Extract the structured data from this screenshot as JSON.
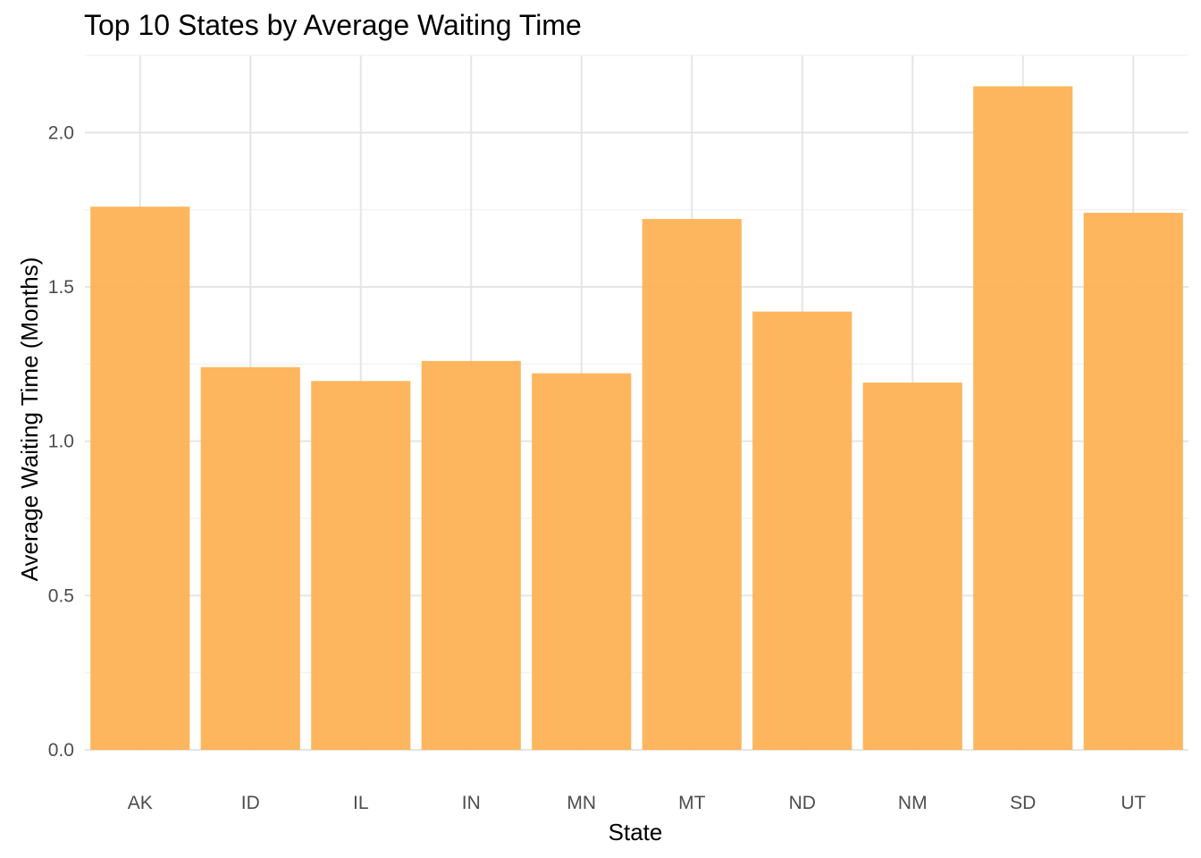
{
  "chart_data": {
    "type": "bar",
    "title": "Top 10 States by Average Waiting Time",
    "xlabel": "State",
    "ylabel": "Average Waiting Time (Months)",
    "categories": [
      "AK",
      "ID",
      "IL",
      "IN",
      "MN",
      "MT",
      "ND",
      "NM",
      "SD",
      "UT"
    ],
    "values": [
      1.76,
      1.24,
      1.195,
      1.26,
      1.22,
      1.72,
      1.42,
      1.19,
      2.15,
      1.74
    ],
    "ylim": [
      0,
      2.25
    ],
    "yticks": [
      "0.0",
      "0.5",
      "1.0",
      "1.5",
      "2.0"
    ],
    "grid": true,
    "legend": "none",
    "bar_color": "#FDB255"
  }
}
